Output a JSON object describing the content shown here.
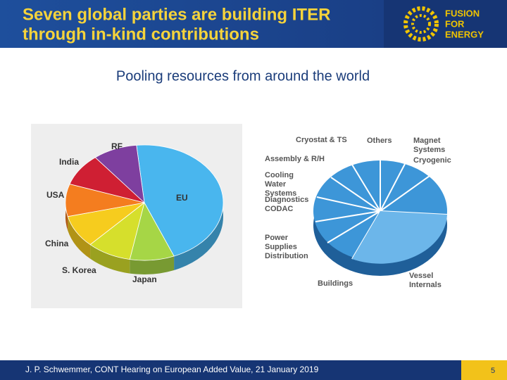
{
  "header": {
    "title_lines": [
      "Seven global parties are building ITER",
      "through in-kind contributions"
    ],
    "logo_lines": [
      "FUSION",
      "FOR",
      "ENERGY"
    ]
  },
  "subtitle": "Pooling resources from around the world",
  "figures": [
    {
      "type": "pie",
      "slices": [
        {
          "label": "EU",
          "value": 45.46,
          "color": "#49b6ee"
        },
        {
          "label": "Japan",
          "value": 9.09,
          "color": "#a6d646"
        },
        {
          "label": "S. Korea",
          "value": 9.09,
          "color": "#d6df2c"
        },
        {
          "label": "China",
          "value": 9.09,
          "color": "#f6cc1e"
        },
        {
          "label": "USA",
          "value": 9.09,
          "color": "#f47d1f"
        },
        {
          "label": "India",
          "value": 9.09,
          "color": "#cf1f33"
        },
        {
          "label": "RF",
          "value": 9.09,
          "color": "#7e3f9f"
        }
      ]
    },
    {
      "labels": [
        "Cryostat & TS",
        "Others",
        "Magnet Systems",
        "Cryogenic",
        "Assembly & R/H",
        "Cooling Water Systems",
        "Diagnostics CODAC",
        "Power Supplies Distribution",
        "Vessel Internals",
        "Buildings"
      ]
    }
  ],
  "footer": {
    "citation": "J. P. Schwemmer, CONT Hearing on European Added Value, 21 January 2019",
    "page": "5"
  }
}
